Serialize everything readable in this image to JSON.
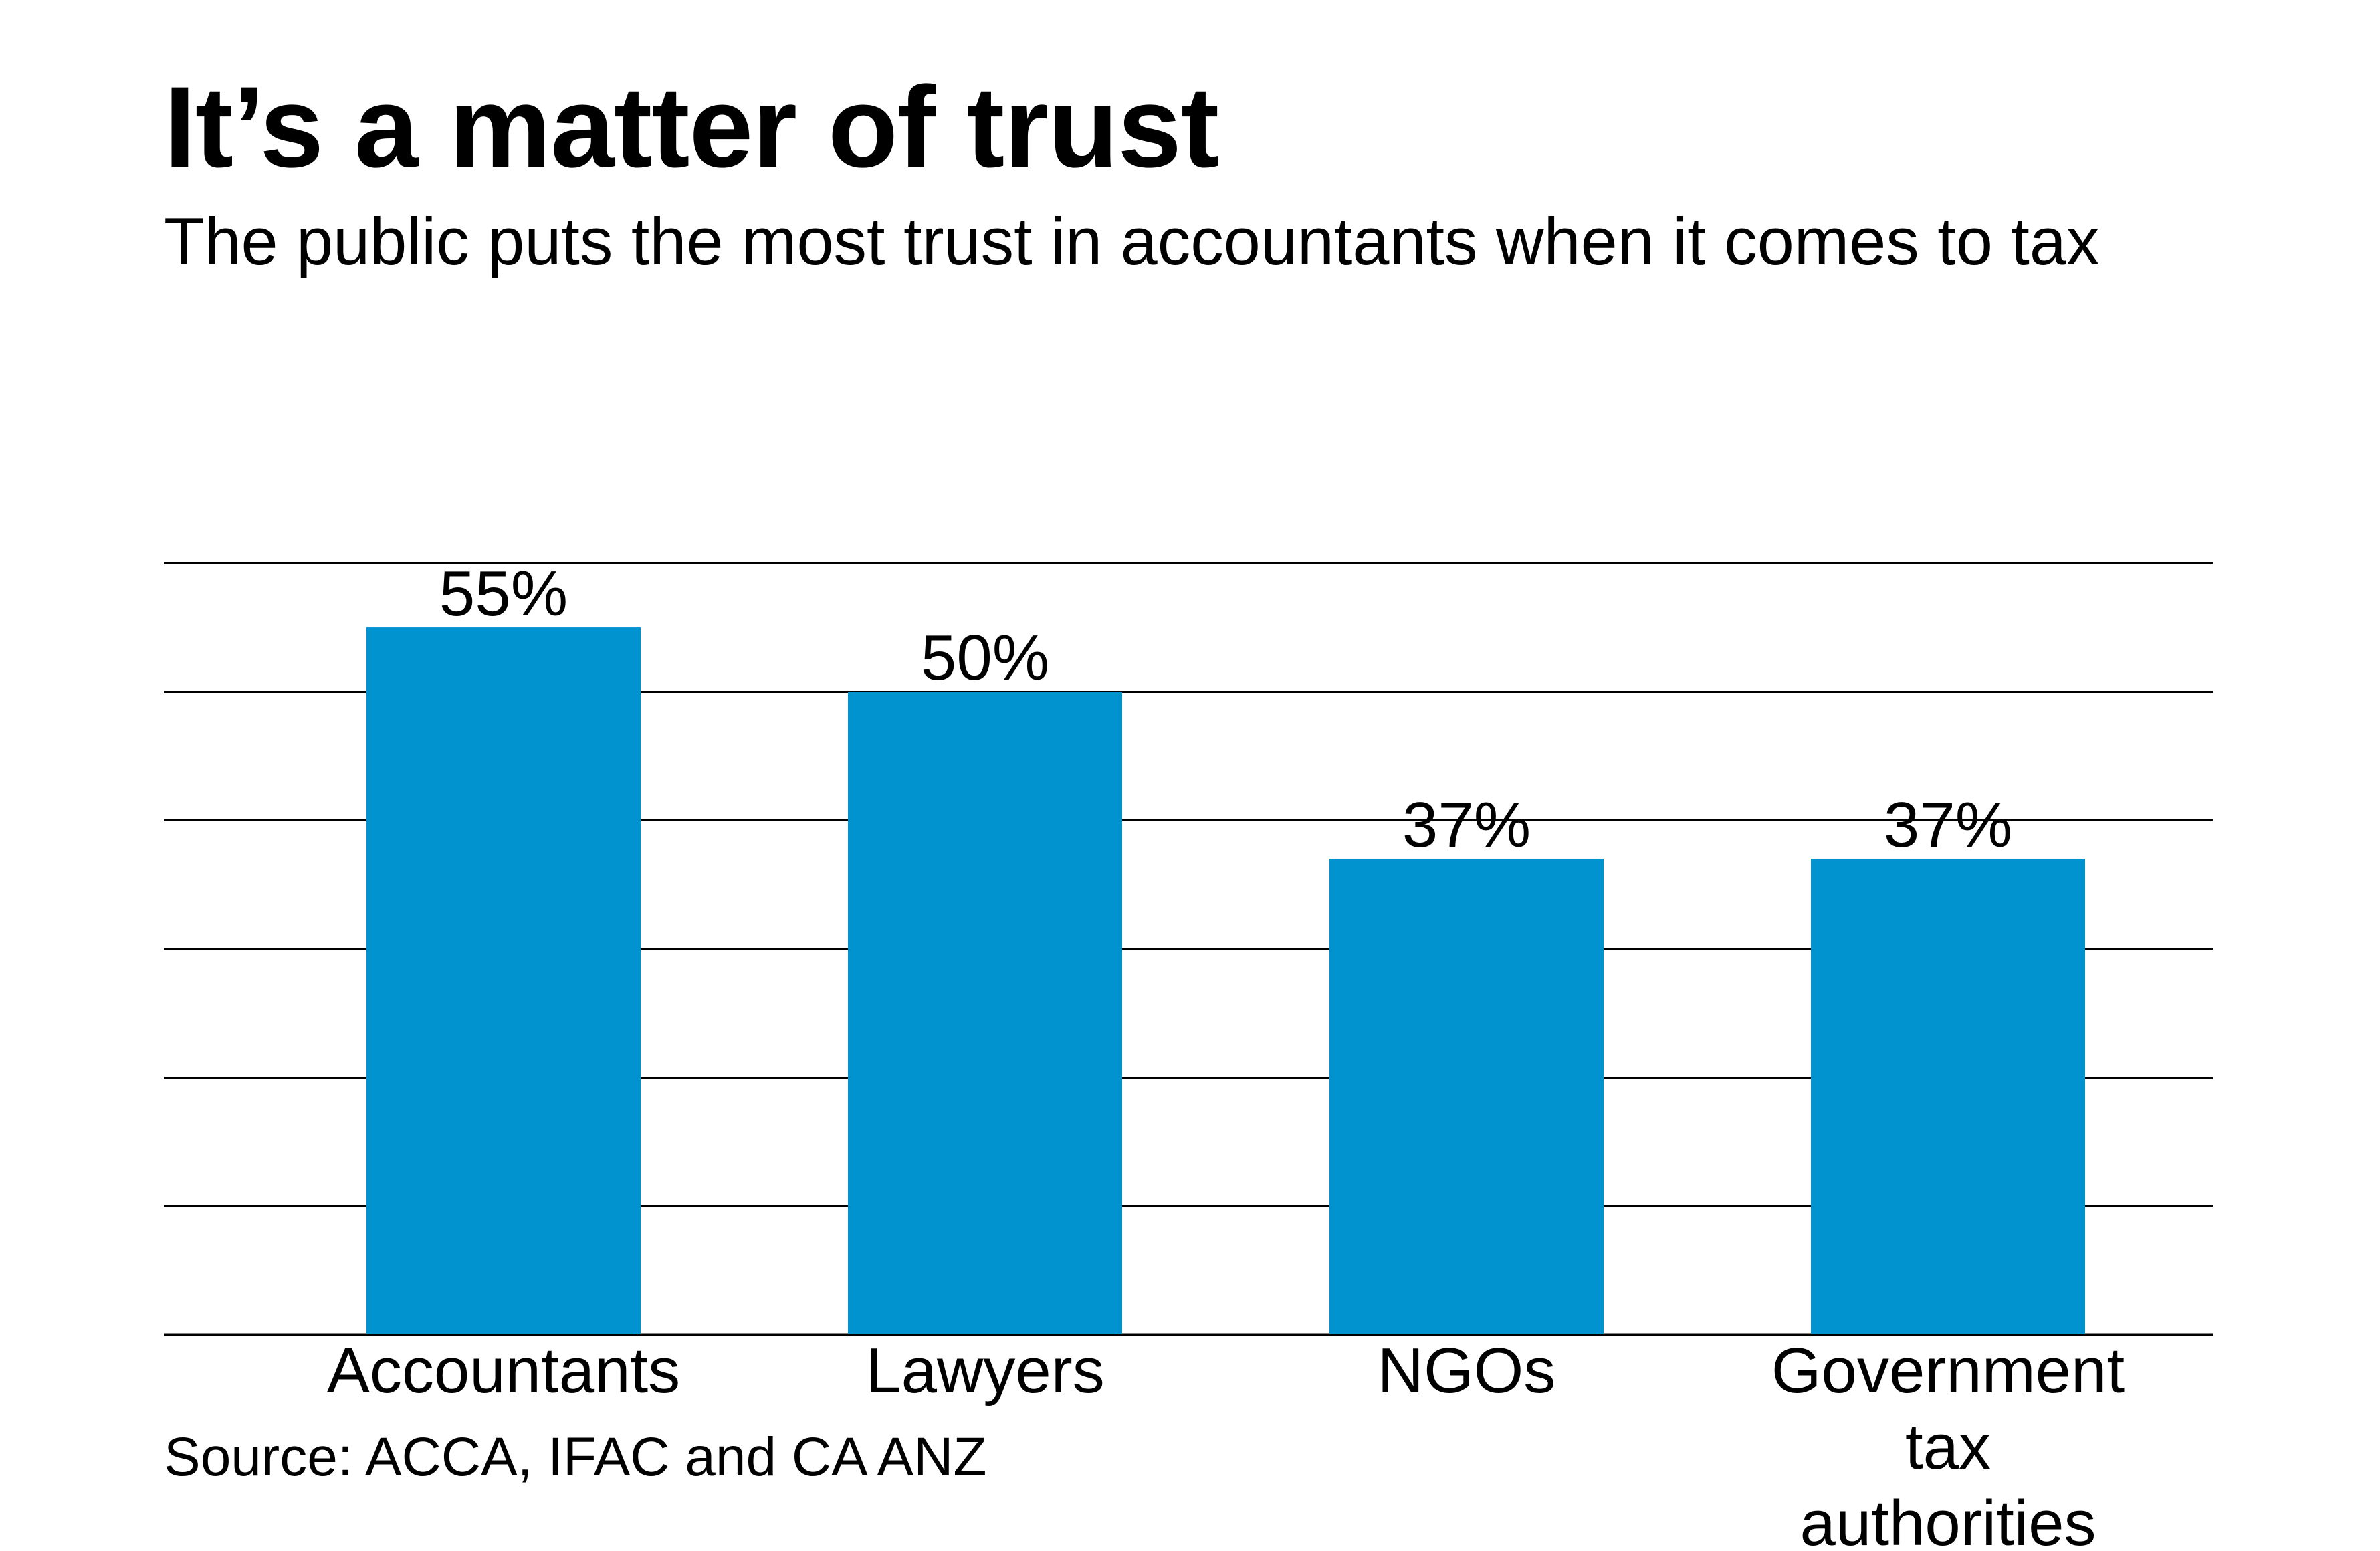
{
  "chart_data": {
    "type": "bar",
    "title": "It’s a matter of trust",
    "subtitle": "The public puts the most trust in accountants when it comes to tax",
    "source": "Source: ACCA, IFAC and CA ANZ",
    "categories": [
      [
        "Accountants"
      ],
      [
        "Lawyers"
      ],
      [
        "NGOs"
      ],
      [
        "Government",
        "tax",
        "authorities"
      ]
    ],
    "values": [
      55,
      50,
      37,
      37
    ],
    "value_labels": [
      "55%",
      "50%",
      "37%",
      "37%"
    ],
    "ylim": [
      0,
      60
    ],
    "gridlines": [
      0,
      10,
      20,
      30,
      40,
      50,
      60
    ],
    "grid": true,
    "y_tick_labels_shown": false,
    "bar_color": "#0093D0",
    "grid_color": "#000000"
  }
}
